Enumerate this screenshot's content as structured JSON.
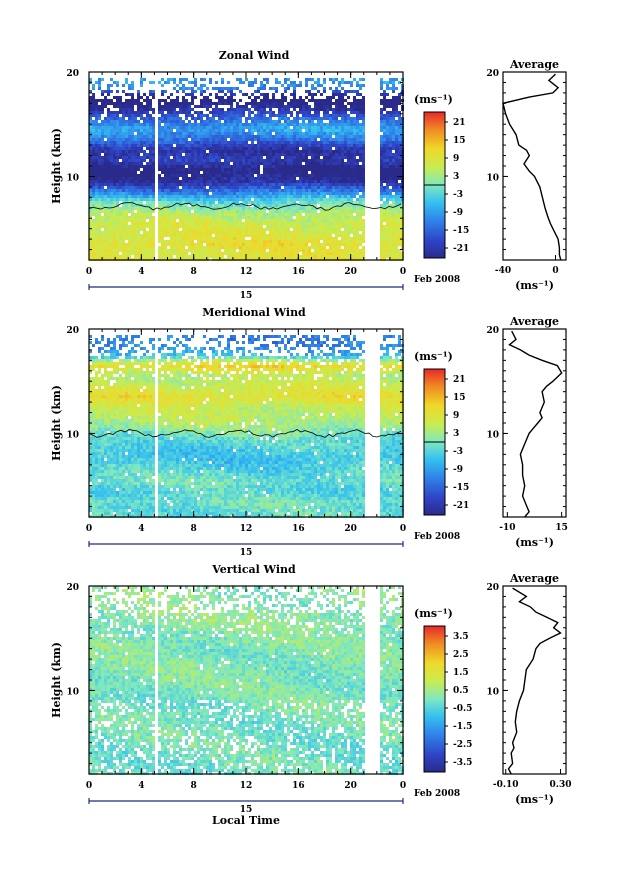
{
  "figure": {
    "date_label": "Feb 2008",
    "day_label": "15",
    "xlabel_bottom": "Local Time",
    "unit_label": "(ms⁻¹)"
  },
  "chart_data": [
    {
      "type": "heatmap",
      "title": "Zonal Wind",
      "xlabel": "",
      "ylabel": "Height (km)",
      "x_ticks": [
        "0",
        "4",
        "8",
        "12",
        "16",
        "20",
        "0"
      ],
      "y_ticks": [
        "20",
        "10"
      ],
      "xlim": [
        0,
        24
      ],
      "ylim": [
        2,
        20
      ],
      "data_gaps_hours": [
        [
          5.0,
          5.3
        ],
        [
          21.1,
          22.2
        ]
      ],
      "colorbar": {
        "ticks": [
          "21",
          "15",
          "9",
          "3",
          "-3",
          "-9",
          "-15",
          "-21"
        ],
        "range": [
          -24,
          24
        ],
        "zero_line": true
      },
      "profile_by_height": [
        {
          "z": 19.5,
          "v": null
        },
        {
          "z": 18.5,
          "v": -10
        },
        {
          "z": 17.5,
          "v": -28
        },
        {
          "z": 16.5,
          "v": -22
        },
        {
          "z": 15.5,
          "v": -14
        },
        {
          "z": 14.5,
          "v": -8
        },
        {
          "z": 13.5,
          "v": -14
        },
        {
          "z": 12.5,
          "v": -22
        },
        {
          "z": 11.5,
          "v": -20
        },
        {
          "z": 10.5,
          "v": -26
        },
        {
          "z": 9.5,
          "v": -22
        },
        {
          "z": 8.5,
          "v": -12
        },
        {
          "z": 7.5,
          "v": -2
        },
        {
          "z": 6.5,
          "v": 4
        },
        {
          "z": 5.5,
          "v": 7
        },
        {
          "z": 4.5,
          "v": 8
        },
        {
          "z": 3.5,
          "v": 10
        },
        {
          "z": 2.5,
          "v": 9
        }
      ],
      "average_profile": {
        "title": "Average",
        "x_ticks": [
          "-40",
          "0"
        ],
        "y_ticks": [
          "20",
          "10"
        ],
        "xlabel": "(ms⁻¹)",
        "xlim": [
          -40,
          8
        ],
        "x": [
          0,
          -5,
          2,
          -2,
          -20,
          -40,
          -38,
          -35,
          -30,
          -28,
          -22,
          -20,
          -24,
          -20,
          -16,
          -12,
          -10,
          -8,
          -6,
          -4,
          -2,
          0,
          2,
          3,
          3,
          4
        ],
        "y": [
          19.8,
          19.2,
          18.5,
          18.0,
          17.6,
          17.0,
          16.0,
          15.0,
          14.0,
          13.0,
          12.5,
          12.0,
          11.2,
          10.5,
          10.0,
          9.0,
          8.0,
          7.0,
          6.2,
          5.5,
          5.0,
          4.5,
          4.0,
          3.2,
          2.5,
          2.0
        ]
      }
    },
    {
      "type": "heatmap",
      "title": "Meridional Wind",
      "xlabel": "",
      "ylabel": "Height (km)",
      "x_ticks": [
        "0",
        "4",
        "8",
        "12",
        "16",
        "20",
        "0"
      ],
      "y_ticks": [
        "20",
        "10"
      ],
      "xlim": [
        0,
        24
      ],
      "ylim": [
        2,
        20
      ],
      "data_gaps_hours": [
        [
          5.0,
          5.3
        ],
        [
          21.1,
          22.2
        ]
      ],
      "colorbar": {
        "ticks": [
          "21",
          "15",
          "9",
          "3",
          "-3",
          "-9",
          "-15",
          "-21"
        ],
        "range": [
          -24,
          24
        ],
        "zero_line": true
      },
      "profile_by_height": [
        {
          "z": 19.5,
          "v": null
        },
        {
          "z": 18.5,
          "v": -12
        },
        {
          "z": 17.5,
          "v": -6
        },
        {
          "z": 16.5,
          "v": 12
        },
        {
          "z": 15.5,
          "v": 4
        },
        {
          "z": 14.5,
          "v": 7
        },
        {
          "z": 13.5,
          "v": 10
        },
        {
          "z": 12.5,
          "v": 6
        },
        {
          "z": 11.5,
          "v": 5
        },
        {
          "z": 10.5,
          "v": 2
        },
        {
          "z": 9.5,
          "v": -2
        },
        {
          "z": 8.5,
          "v": -4
        },
        {
          "z": 7.5,
          "v": -5
        },
        {
          "z": 6.5,
          "v": -3
        },
        {
          "z": 5.5,
          "v": -1
        },
        {
          "z": 4.5,
          "v": -3
        },
        {
          "z": 3.5,
          "v": -1
        },
        {
          "z": 2.5,
          "v": -2
        }
      ],
      "average_profile": {
        "title": "Average",
        "x_ticks": [
          "-10",
          "15"
        ],
        "y_ticks": [
          "20",
          "10"
        ],
        "xlabel": "(ms⁻¹)",
        "xlim": [
          -12,
          17
        ],
        "x": [
          -8,
          -6,
          -9,
          -4,
          0,
          6,
          13,
          15,
          11,
          8,
          6,
          7,
          5,
          6,
          4,
          2,
          0,
          -2,
          -4,
          -3,
          -3,
          -2,
          -3,
          -1,
          0,
          -2
        ],
        "y": [
          19.8,
          19.0,
          18.5,
          18.0,
          17.5,
          17.0,
          16.5,
          15.8,
          15.0,
          14.5,
          14.0,
          13.0,
          12.0,
          11.5,
          11.0,
          10.5,
          10.0,
          9.0,
          8.0,
          7.0,
          6.0,
          5.0,
          4.0,
          3.0,
          2.5,
          2.0
        ]
      }
    },
    {
      "type": "heatmap",
      "title": "Vertical Wind",
      "xlabel": "Local Time",
      "ylabel": "Height (km)",
      "x_ticks": [
        "0",
        "4",
        "8",
        "12",
        "16",
        "20",
        "0"
      ],
      "y_ticks": [
        "20",
        "10"
      ],
      "xlim": [
        0,
        24
      ],
      "ylim": [
        2,
        20
      ],
      "data_gaps_hours": [
        [
          5.0,
          5.3
        ],
        [
          21.1,
          22.2
        ]
      ],
      "colorbar": {
        "ticks": [
          "3.5",
          "2.5",
          "1.5",
          "0.5",
          "-0.5",
          "-1.5",
          "-2.5",
          "-3.5"
        ],
        "range": [
          -4,
          4
        ],
        "zero_line": false
      },
      "profile_by_height": [
        {
          "z": 19.5,
          "v": 0.2
        },
        {
          "z": 18.5,
          "v": 0.15
        },
        {
          "z": 17.5,
          "v": 0.25
        },
        {
          "z": 16.5,
          "v": 0.3
        },
        {
          "z": 15.5,
          "v": 0.1
        },
        {
          "z": 14.5,
          "v": 0.1
        },
        {
          "z": 13.5,
          "v": 0.05
        },
        {
          "z": 12.5,
          "v": 0.05
        },
        {
          "z": 11.5,
          "v": 0.05
        },
        {
          "z": 10.5,
          "v": 0.0
        },
        {
          "z": 9.5,
          "v": 0.0
        },
        {
          "z": 8.5,
          "v": -0.05
        },
        {
          "z": 7.5,
          "v": -0.05
        },
        {
          "z": 6.5,
          "v": -0.1
        },
        {
          "z": 5.5,
          "v": -0.1
        },
        {
          "z": 4.5,
          "v": -0.1
        },
        {
          "z": 3.5,
          "v": -0.15
        },
        {
          "z": 2.5,
          "v": -0.15
        }
      ],
      "average_profile": {
        "title": "Average",
        "x_ticks": [
          "-0.10",
          "0.30"
        ],
        "y_ticks": [
          "20",
          "10"
        ],
        "xlabel": "(ms⁻¹)",
        "xlim": [
          -0.12,
          0.34
        ],
        "x": [
          -0.05,
          0.05,
          0.0,
          0.08,
          0.12,
          0.2,
          0.28,
          0.25,
          0.3,
          0.22,
          0.15,
          0.12,
          0.1,
          0.05,
          0.04,
          0.03,
          0.0,
          -0.02,
          -0.03,
          -0.02,
          -0.05,
          -0.04,
          -0.06,
          -0.05,
          -0.08,
          -0.06
        ],
        "y": [
          19.8,
          19.0,
          18.5,
          18.0,
          17.5,
          17.0,
          16.5,
          16.0,
          15.5,
          15.0,
          14.5,
          14.0,
          13.0,
          12.0,
          11.0,
          10.0,
          9.0,
          8.0,
          7.0,
          6.0,
          5.0,
          4.5,
          4.0,
          3.0,
          2.5,
          2.0
        ]
      }
    }
  ]
}
